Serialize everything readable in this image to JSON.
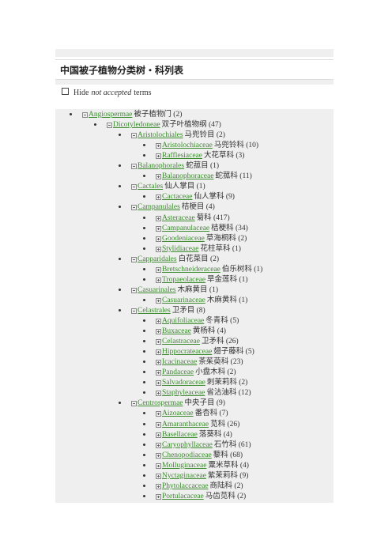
{
  "header": {
    "title": "中国被子植物分类树・科列表"
  },
  "filter": {
    "parts": [
      "Hide",
      "not accepted",
      "terms"
    ],
    "checked": false
  },
  "tree": {
    "rows": [
      {
        "name": "Angiospermae",
        "label": "被子植物门 (2)",
        "level": 0,
        "expanded": true
      },
      {
        "name": "Dicotyledoneae",
        "label": "双子叶植物纲 (47)",
        "level": 1,
        "expanded": true
      },
      {
        "name": "Aristolochiales",
        "label": "马兜铃目 (2)",
        "level": 2,
        "expanded": true
      },
      {
        "name": "Aristolochiaceae",
        "label": "马兜铃科 (10)",
        "level": 3,
        "expanded": false
      },
      {
        "name": "Rafflesiaceae",
        "label": "大花草科 (3)",
        "level": 3,
        "expanded": false
      },
      {
        "name": "Balanophorales",
        "label": "蛇菰目 (1)",
        "level": 2,
        "expanded": true
      },
      {
        "name": "Balanophoraceae",
        "label": "蛇菰科 (11)",
        "level": 3,
        "expanded": false
      },
      {
        "name": "Cactales",
        "label": "仙人掌目 (1)",
        "level": 2,
        "expanded": true
      },
      {
        "name": "Cactaceae",
        "label": "仙人掌科 (9)",
        "level": 3,
        "expanded": false
      },
      {
        "name": "Campanulales",
        "label": "桔梗目 (4)",
        "level": 2,
        "expanded": true
      },
      {
        "name": "Asteraceae",
        "label": "菊科 (417)",
        "level": 3,
        "expanded": false
      },
      {
        "name": "Campanulaceae",
        "label": "桔梗科 (34)",
        "level": 3,
        "expanded": false
      },
      {
        "name": "Goodeniaceae",
        "label": "草海桐科 (2)",
        "level": 3,
        "expanded": false
      },
      {
        "name": "Stylidiaceae",
        "label": "花柱草科 (1)",
        "level": 3,
        "expanded": false
      },
      {
        "name": "Capparidales",
        "label": "白花菜目 (2)",
        "level": 2,
        "expanded": true
      },
      {
        "name": "Bretschneideraceae",
        "label": "伯乐树科 (1)",
        "level": 3,
        "expanded": false
      },
      {
        "name": "Tropaeolaceae",
        "label": "旱金莲科 (1)",
        "level": 3,
        "expanded": false
      },
      {
        "name": "Casuarinales",
        "label": "木麻黄目 (1)",
        "level": 2,
        "expanded": true
      },
      {
        "name": "Casuarinaceae",
        "label": "木麻黄科 (1)",
        "level": 3,
        "expanded": false
      },
      {
        "name": "Celastrales",
        "label": "卫矛目 (8)",
        "level": 2,
        "expanded": true
      },
      {
        "name": "Aquifoliaceae",
        "label": "冬青科 (5)",
        "level": 3,
        "expanded": false
      },
      {
        "name": "Buxaceae",
        "label": "黄杨科 (4)",
        "level": 3,
        "expanded": false
      },
      {
        "name": "Celastraceae",
        "label": "卫矛科 (26)",
        "level": 3,
        "expanded": false
      },
      {
        "name": "Hippocrateaceae",
        "label": "翅子藤科 (5)",
        "level": 3,
        "expanded": false
      },
      {
        "name": "Icacinaceae",
        "label": "茶茱萸科 (23)",
        "level": 3,
        "expanded": false
      },
      {
        "name": "Pandaceae",
        "label": "小盘木科 (2)",
        "level": 3,
        "expanded": false
      },
      {
        "name": "Salvadoraceae",
        "label": "刺茉莉科 (2)",
        "level": 3,
        "expanded": false
      },
      {
        "name": "Staphyleaceae",
        "label": "省沽油科 (12)",
        "level": 3,
        "expanded": false
      },
      {
        "name": "Centrospermae",
        "label": "中央子目 (9)",
        "level": 2,
        "expanded": true
      },
      {
        "name": "Aizoaceae",
        "label": "番杏科 (7)",
        "level": 3,
        "expanded": false
      },
      {
        "name": "Amaranthaceae",
        "label": "苋科 (26)",
        "level": 3,
        "expanded": false
      },
      {
        "name": "Basellaceae",
        "label": "落葵科 (4)",
        "level": 3,
        "expanded": false
      },
      {
        "name": "Caryophyllaceae",
        "label": "石竹科 (61)",
        "level": 3,
        "expanded": false
      },
      {
        "name": "Chenopodiaceae",
        "label": "藜科 (68)",
        "level": 3,
        "expanded": false
      },
      {
        "name": "Molluginaceae",
        "label": "粟米草科 (4)",
        "level": 3,
        "expanded": false
      },
      {
        "name": "Nyctaginaceae",
        "label": "紫茉莉科 (9)",
        "level": 3,
        "expanded": false
      },
      {
        "name": "Phytolaccaceae",
        "label": "商陆科 (2)",
        "level": 3,
        "expanded": false
      },
      {
        "name": "Portulacaceae",
        "label": "马齿苋科 (2)",
        "level": 3,
        "expanded": false
      }
    ]
  }
}
